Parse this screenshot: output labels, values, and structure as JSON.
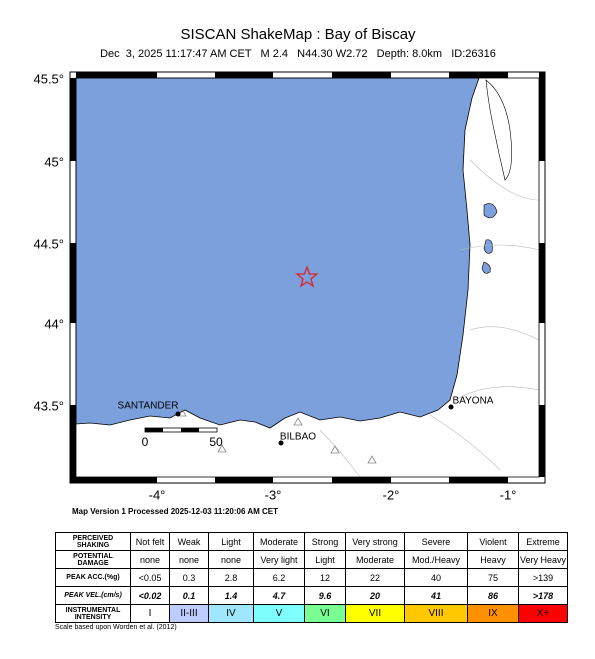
{
  "header": {
    "title": "SISCAN ShakeMap : Bay of Biscay",
    "subtitle": "Dec  3, 2025 11:17:47 AM CET   M 2.4   N44.30 W2.72   Depth: 8.0km   ID:26316"
  },
  "map": {
    "lat_labels": [
      "45.5°",
      "45°",
      "44.5°",
      "44°",
      "43.5°"
    ],
    "lon_labels": [
      "-4°",
      "-3°",
      "-2°",
      "-1°"
    ],
    "cities": [
      "SANTANDER",
      "BILBAO",
      "BAYONA"
    ],
    "scale_bar": [
      "0",
      "50"
    ]
  },
  "processed": "Map Version 1 Processed 2025-12-03 11:20:06 AM CET",
  "legend_table": {
    "rows": [
      [
        "PERCEIVED\nSHAKING",
        "Not felt",
        "Weak",
        "Light",
        "Moderate",
        "Strong",
        "Very strong",
        "Severe",
        "Violent",
        "Extreme"
      ],
      [
        "POTENTIAL\nDAMAGE",
        "none",
        "none",
        "none",
        "Very light",
        "Light",
        "Moderate",
        "Mod./Heavy",
        "Heavy",
        "Very Heavy"
      ],
      [
        "PEAK ACC.(%g)",
        "<0.05",
        "0.3",
        "2.8",
        "6.2",
        "12",
        "22",
        "40",
        "75",
        ">139"
      ],
      [
        "PEAK VEL.(cm/s)",
        "<0.02",
        "0.1",
        "1.4",
        "4.7",
        "9.6",
        "20",
        "41",
        "86",
        ">178"
      ],
      [
        "INSTRUMENTAL\nINTENSITY",
        "I",
        "II-III",
        "IV",
        "V",
        "VI",
        "VII",
        "VIII",
        "IX",
        "X+"
      ]
    ]
  },
  "footnote": "Scale based upon Worden et al. (2012)"
}
